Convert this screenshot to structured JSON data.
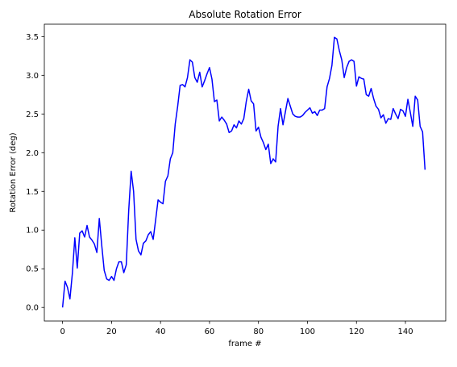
{
  "chart_data": {
    "type": "line",
    "title": "Absolute Rotation Error",
    "xlabel": "frame #",
    "ylabel": "Rotation Error (deg)",
    "xlim": [
      -7.45,
      156.45
    ],
    "ylim": [
      -0.175,
      3.66
    ],
    "xticks": [
      0,
      20,
      40,
      60,
      80,
      100,
      120,
      140
    ],
    "yticks": [
      0.0,
      0.5,
      1.0,
      1.5,
      2.0,
      2.5,
      3.0,
      3.5
    ],
    "ytick_labels": [
      "0.0",
      "0.5",
      "1.0",
      "1.5",
      "2.0",
      "2.5",
      "3.0",
      "3.5"
    ],
    "grid": false,
    "series": [
      {
        "color": "#0000ff",
        "x_start": 0,
        "x_step": 1,
        "values": [
          0.0,
          0.34,
          0.26,
          0.11,
          0.44,
          0.9,
          0.51,
          0.96,
          0.99,
          0.91,
          1.06,
          0.91,
          0.87,
          0.82,
          0.71,
          1.15,
          0.8,
          0.48,
          0.37,
          0.35,
          0.4,
          0.35,
          0.5,
          0.59,
          0.59,
          0.45,
          0.55,
          1.25,
          1.76,
          1.5,
          0.88,
          0.73,
          0.68,
          0.83,
          0.86,
          0.94,
          0.98,
          0.88,
          1.13,
          1.39,
          1.36,
          1.34,
          1.63,
          1.7,
          1.92,
          2.0,
          2.37,
          2.6,
          2.87,
          2.88,
          2.85,
          2.97,
          3.2,
          3.17,
          2.97,
          2.91,
          3.04,
          2.85,
          2.93,
          3.02,
          3.1,
          2.95,
          2.66,
          2.68,
          2.41,
          2.46,
          2.42,
          2.37,
          2.26,
          2.28,
          2.36,
          2.32,
          2.41,
          2.37,
          2.44,
          2.66,
          2.82,
          2.67,
          2.63,
          2.28,
          2.33,
          2.2,
          2.13,
          2.04,
          2.11,
          1.86,
          1.92,
          1.88,
          2.34,
          2.57,
          2.36,
          2.53,
          2.7,
          2.6,
          2.5,
          2.47,
          2.46,
          2.46,
          2.48,
          2.52,
          2.55,
          2.58,
          2.51,
          2.53,
          2.48,
          2.55,
          2.55,
          2.57,
          2.85,
          2.96,
          3.13,
          3.49,
          3.47,
          3.32,
          3.2,
          2.97,
          3.1,
          3.18,
          3.2,
          3.18,
          2.86,
          2.98,
          2.96,
          2.95,
          2.75,
          2.73,
          2.83,
          2.7,
          2.6,
          2.56,
          2.45,
          2.49,
          2.38,
          2.44,
          2.43,
          2.57,
          2.5,
          2.44,
          2.56,
          2.54,
          2.47,
          2.69,
          2.52,
          2.34,
          2.73,
          2.68,
          2.34,
          2.27,
          1.78
        ]
      }
    ]
  }
}
